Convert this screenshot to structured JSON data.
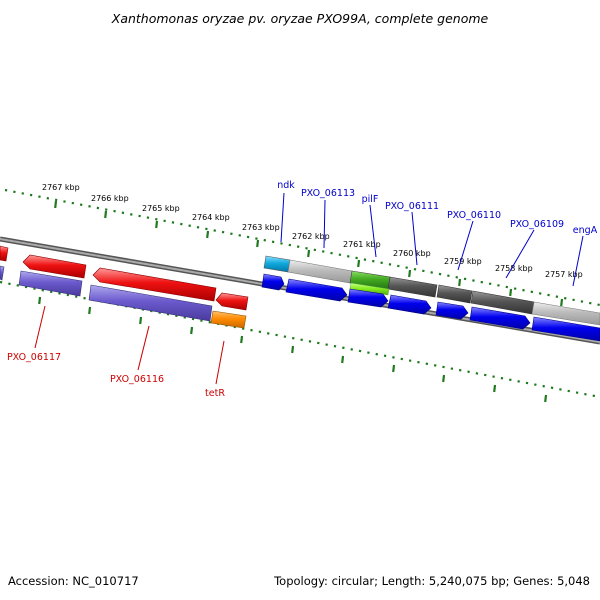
{
  "title": "Xanthomonas oryzae pv. oryzae PXO99A, complete genome",
  "footer": {
    "accession": "Accession: NC_010717",
    "topology": "Topology: circular; Length: 5,240,075 bp; Genes: 5,048"
  },
  "scale_labels": [
    "2767 kbp",
    "2766 kbp",
    "2765 kbp",
    "2764 kbp",
    "2763 kbp",
    "2762 kbp",
    "2761 kbp",
    "2760 kbp",
    "2759 kbp",
    "2758 kbp",
    "2757 kbp"
  ],
  "forward_gene_labels": [
    "ndk",
    "PXO_06113",
    "pilF",
    "PXO_06111",
    "PXO_06110",
    "PXO_06109",
    "engA"
  ],
  "reverse_gene_labels": [
    "PXO_06117",
    "PXO_06116",
    "tetR"
  ],
  "colors": {
    "scale": "#1f7a1f",
    "backbone": "#808080",
    "forward_label": "#0000cc",
    "reverse_label": "#cc0000",
    "gene_red": "#ee1111",
    "gene_blue": "#0000ee",
    "gene_purple": "#6a5acd",
    "gene_orange": "#ff8c00",
    "gene_cyan": "#11aadd",
    "gene_gray": "#bbbbbb",
    "gene_darkgray": "#555555",
    "gene_green": "#44aa22",
    "gene_lime": "#88ee22"
  }
}
